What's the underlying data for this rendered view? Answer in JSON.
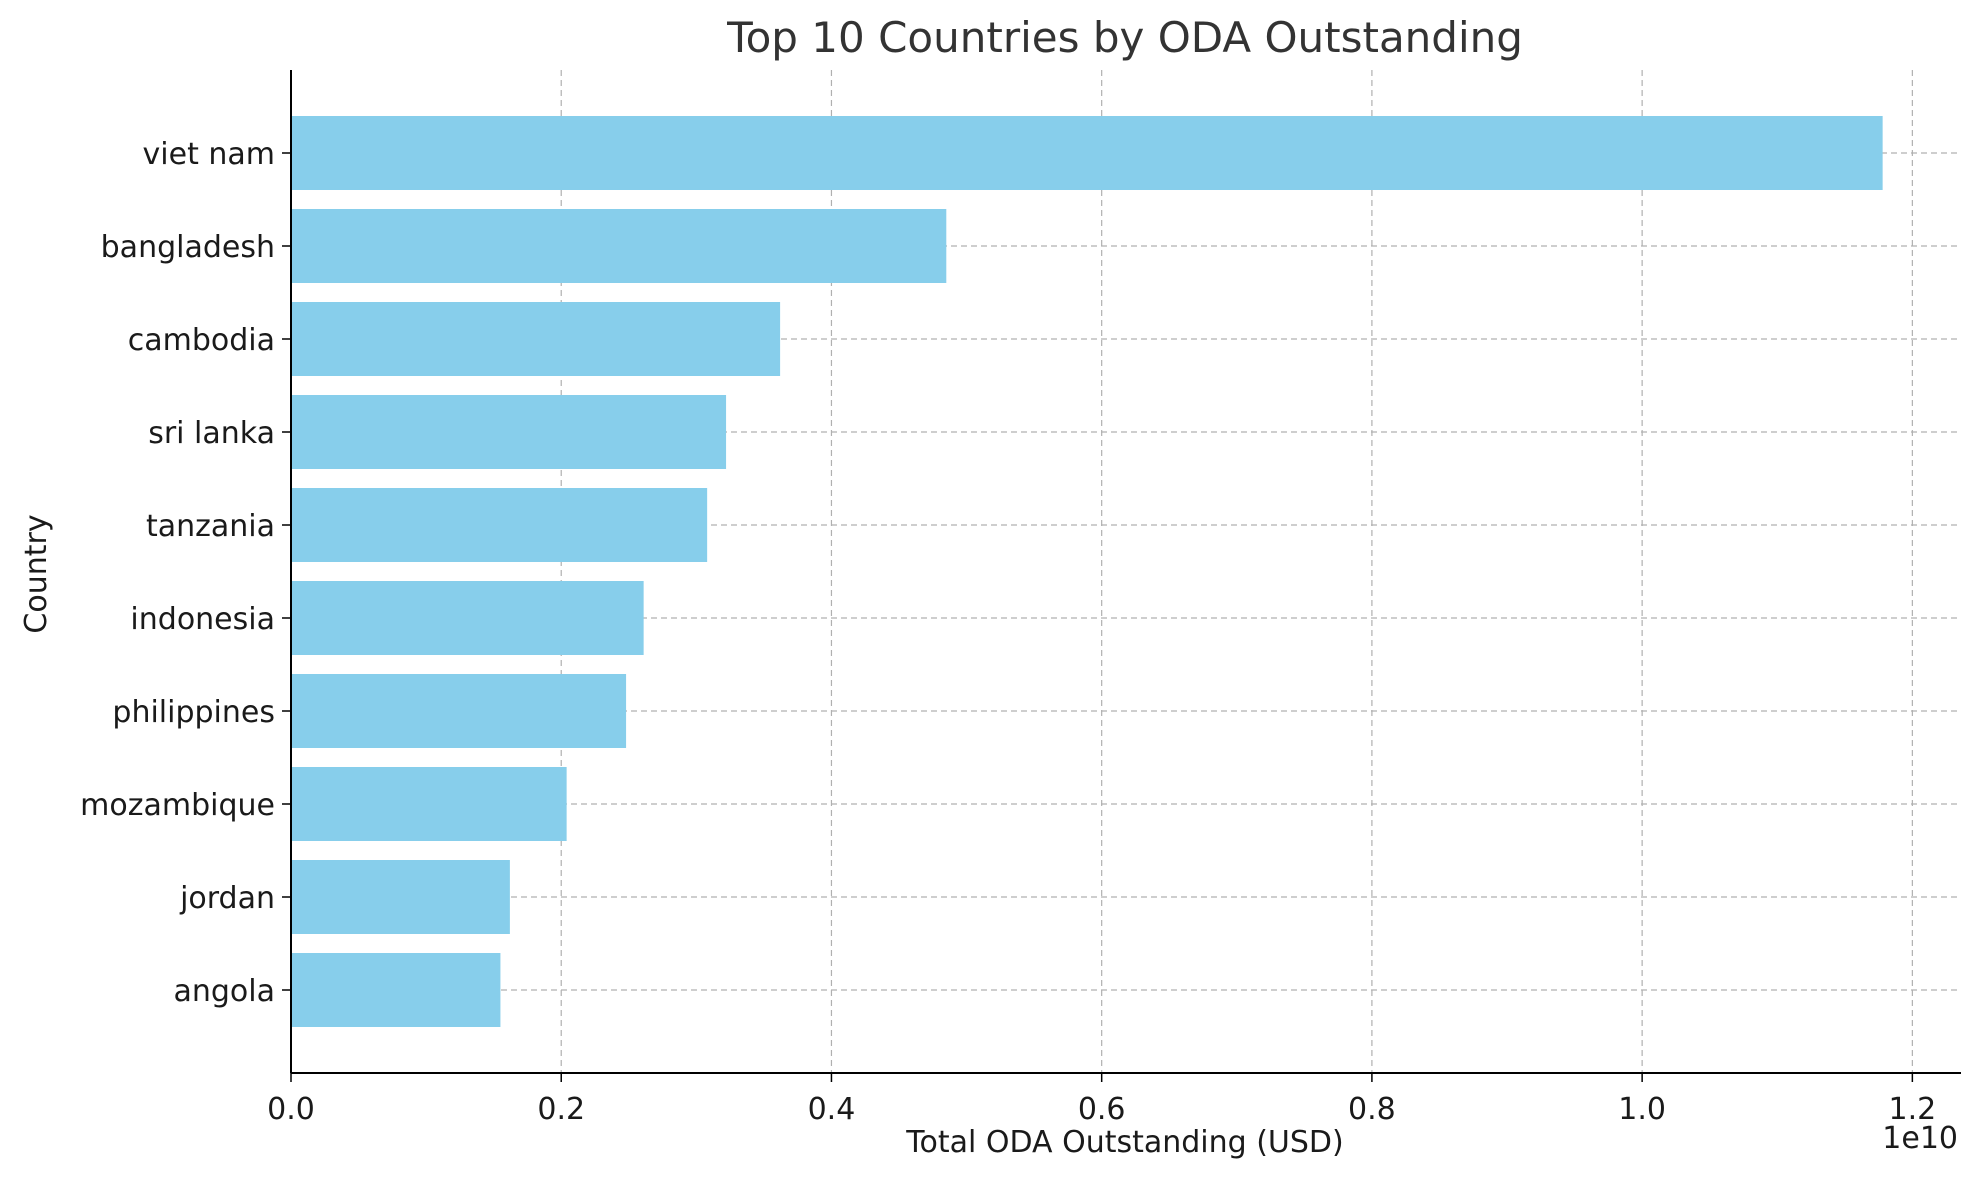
{
  "chart_data": {
    "type": "bar",
    "orientation": "horizontal",
    "title": "Top 10 Countries by ODA Outstanding",
    "xlabel": "Total ODA Outstanding (USD)",
    "ylabel": "Country",
    "x_offset_label": "1e10",
    "categories": [
      "viet nam",
      "bangladesh",
      "cambodia",
      "sri lanka",
      "tanzania",
      "indonesia",
      "philippines",
      "mozambique",
      "jordan",
      "angola"
    ],
    "values": [
      11780000000,
      4850000000,
      3620000000,
      3220000000,
      3080000000,
      2610000000,
      2480000000,
      2040000000,
      1620000000,
      1550000000
    ],
    "xlim": [
      0,
      12360000000
    ],
    "xticks": [
      0,
      2000000000,
      4000000000,
      6000000000,
      8000000000,
      10000000000,
      12000000000
    ],
    "xtick_labels": [
      "0.0",
      "0.2",
      "0.4",
      "0.6",
      "0.8",
      "1.0",
      "1.2"
    ],
    "grid": true,
    "bar_color": "#87ceeb",
    "grid_color": "#b0b0b0",
    "axis_color": "#000000"
  }
}
